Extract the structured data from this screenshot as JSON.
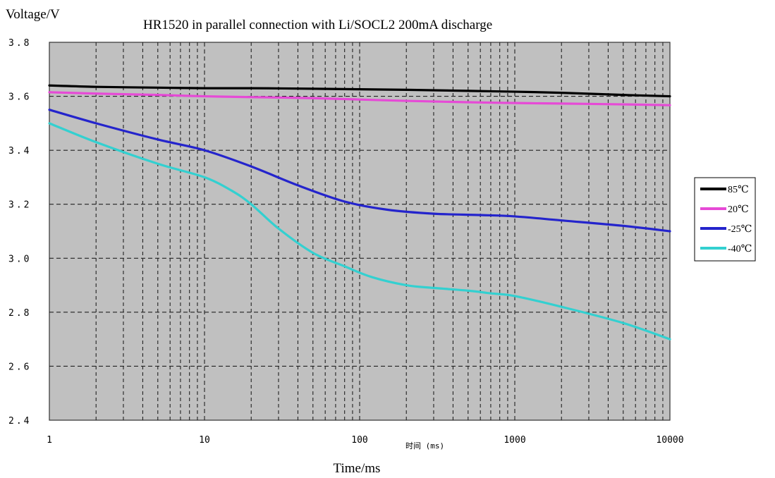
{
  "chart_data": {
    "type": "line",
    "title": "HR1520 in parallel connection with Li/SOCL2    200mA discharge",
    "ylabel": "Voltage/V",
    "xlabel": "Time/ms",
    "x_axis_inner_label": "时间 (ms)",
    "x_scale": "log",
    "xlim": [
      1,
      10000
    ],
    "ylim": [
      2.4,
      3.8
    ],
    "x_ticks": [
      {
        "value": 1,
        "label": "1"
      },
      {
        "value": 10,
        "label": "10"
      },
      {
        "value": 100,
        "label": "100"
      },
      {
        "value": 1000,
        "label": "1000"
      },
      {
        "value": 10000,
        "label": "10000"
      }
    ],
    "y_ticks": [
      {
        "value": 2.4,
        "label": "2.4"
      },
      {
        "value": 2.6,
        "label": "2.6"
      },
      {
        "value": 2.8,
        "label": "2.8"
      },
      {
        "value": 3.0,
        "label": "3.0"
      },
      {
        "value": 3.2,
        "label": "3.2"
      },
      {
        "value": 3.4,
        "label": "3.4"
      },
      {
        "value": 3.6,
        "label": "3.6"
      },
      {
        "value": 3.8,
        "label": "3.8"
      }
    ],
    "grid": true,
    "legend": "right",
    "series": [
      {
        "name": "85℃",
        "color": "#000000",
        "x": [
          1,
          2,
          5,
          10,
          20,
          50,
          100,
          200,
          500,
          1000,
          2000,
          5000,
          10000
        ],
        "y": [
          3.64,
          3.635,
          3.632,
          3.63,
          3.63,
          3.628,
          3.626,
          3.624,
          3.62,
          3.617,
          3.613,
          3.605,
          3.6
        ]
      },
      {
        "name": "20℃",
        "color": "#e64ad6",
        "x": [
          1,
          2,
          5,
          10,
          20,
          50,
          100,
          200,
          500,
          1000,
          2000,
          5000,
          10000
        ],
        "y": [
          3.615,
          3.61,
          3.605,
          3.6,
          3.597,
          3.593,
          3.588,
          3.583,
          3.578,
          3.575,
          3.573,
          3.57,
          3.567
        ]
      },
      {
        "name": "-25℃",
        "color": "#2424cc",
        "x": [
          1,
          2,
          5,
          10,
          20,
          40,
          80,
          150,
          300,
          600,
          1000,
          2000,
          5000,
          10000
        ],
        "y": [
          3.55,
          3.5,
          3.44,
          3.4,
          3.34,
          3.27,
          3.21,
          3.18,
          3.165,
          3.16,
          3.155,
          3.14,
          3.12,
          3.1
        ]
      },
      {
        "name": "-40℃",
        "color": "#33d0d0",
        "x": [
          1,
          2,
          5,
          10,
          15,
          20,
          30,
          50,
          80,
          120,
          200,
          300,
          500,
          700,
          1000,
          2000,
          5000,
          10000
        ],
        "y": [
          3.5,
          3.43,
          3.35,
          3.3,
          3.25,
          3.2,
          3.11,
          3.02,
          2.97,
          2.93,
          2.9,
          2.89,
          2.88,
          2.87,
          2.86,
          2.82,
          2.76,
          2.7
        ]
      }
    ]
  }
}
